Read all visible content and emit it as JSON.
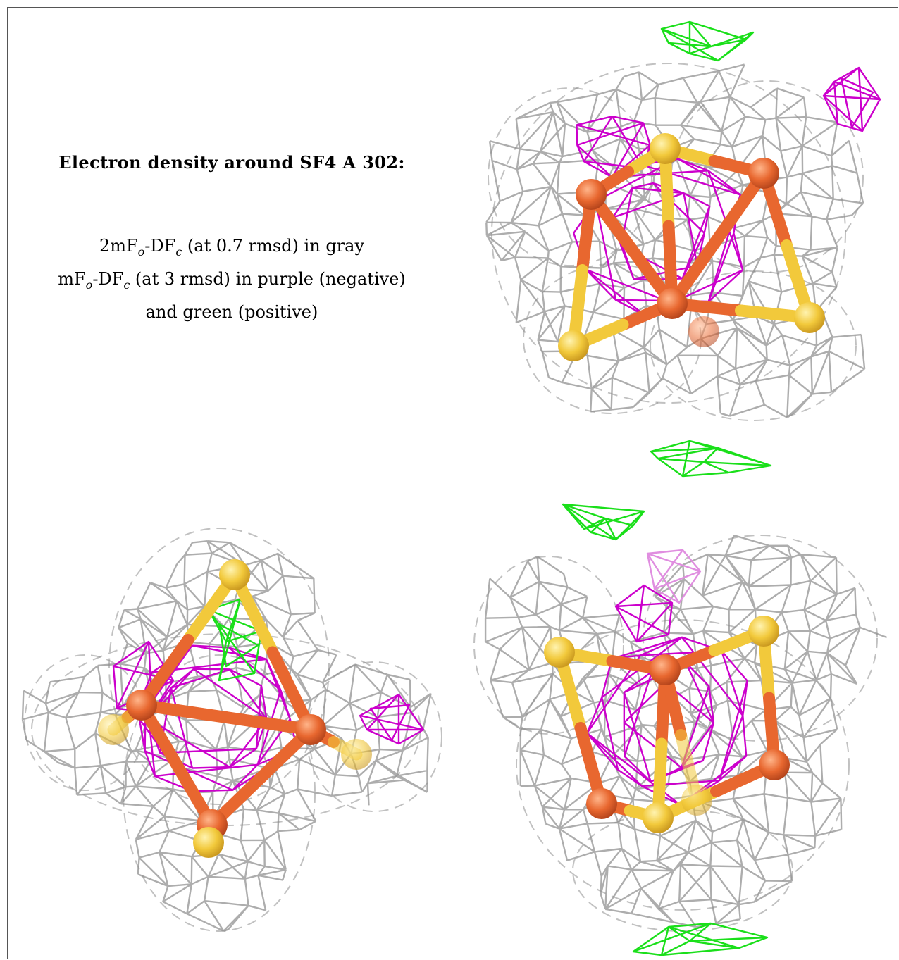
{
  "caption": {
    "title": "Electron density around SF4 A 302:",
    "line1": {
      "pre": "2mF",
      "s1": "o",
      "mid": "-DF",
      "s2": "c",
      "post": " (at 0.7 rmsd) in gray"
    },
    "line2": {
      "pre": "mF",
      "s1": "o",
      "mid": "-DF",
      "s2": "c",
      "post": " (at 3 rmsd) in purple (negative)"
    },
    "line3": "and green (positive)"
  },
  "colors": {
    "mesh_gray": "#a9a9a9",
    "negative_purple": "#cc00cc",
    "positive_green": "#1adf1a",
    "iron_orange": "#e8672f",
    "sulfur_yellow": "#f2c93b",
    "border": "#555555"
  }
}
